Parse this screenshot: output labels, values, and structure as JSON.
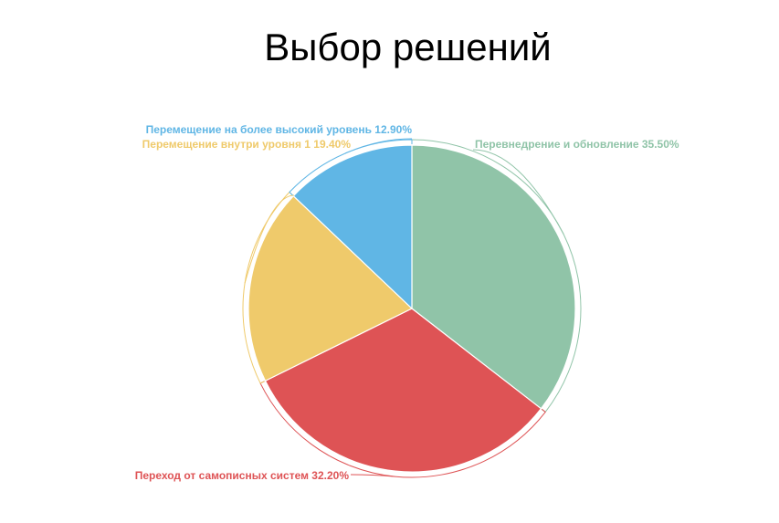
{
  "chart_data": {
    "type": "pie",
    "title": "Выбор решений",
    "slices": [
      {
        "label": "Перевнедрение и обновление 35.50%",
        "value": 35.5,
        "color": "#90c4a8"
      },
      {
        "label": "Переход от самописных систем 32.20%",
        "value": 32.2,
        "color": "#de5355"
      },
      {
        "label": "Перемещение внутри уровня 1 19.40%",
        "value": 19.4,
        "color": "#efca6b"
      },
      {
        "label": "Перемещение на более высокий уровень 12.90%",
        "value": 12.9,
        "color": "#60b6e5"
      }
    ],
    "legend": "none"
  }
}
